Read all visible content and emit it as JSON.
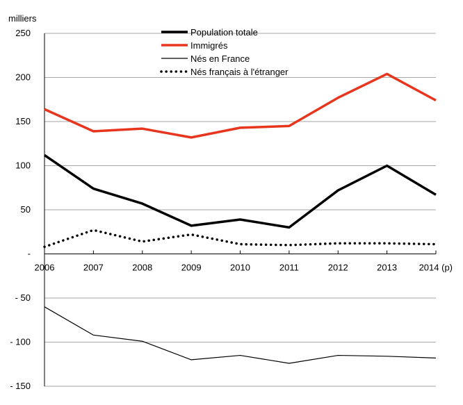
{
  "chart_data": {
    "type": "line",
    "title": "",
    "unit_label": "milliers",
    "xlabel": "",
    "ylabel": "milliers",
    "categories": [
      "2006",
      "2007",
      "2008",
      "2009",
      "2010",
      "2011",
      "2012",
      "2013",
      "2014 (p)"
    ],
    "ylim": [
      -150,
      250
    ],
    "yticks": [
      250,
      200,
      150,
      100,
      50,
      0,
      -50,
      -100,
      -150
    ],
    "ytick_labels": [
      "250",
      "200",
      "150",
      "100",
      "50",
      "-",
      "- 50",
      "- 100",
      "- 150"
    ],
    "grid": true,
    "legend_position": "top-center",
    "series": [
      {
        "name": "Population totale",
        "color": "#000000",
        "style": "solid-thick",
        "values": [
          112,
          74,
          57,
          32,
          39,
          30,
          72,
          100,
          67
        ]
      },
      {
        "name": "Immigrés",
        "color": "#e8351e",
        "style": "solid-thick",
        "values": [
          164,
          139,
          142,
          132,
          143,
          145,
          177,
          204,
          174
        ]
      },
      {
        "name": "Nés en France",
        "color": "#000000",
        "style": "solid-thin",
        "values": [
          -60,
          -92,
          -99,
          -120,
          -115,
          -124,
          -115,
          -116,
          -118
        ]
      },
      {
        "name": "Nés français à l'étranger",
        "color": "#000000",
        "style": "dotted",
        "values": [
          8,
          27,
          14,
          22,
          11,
          10,
          12,
          12,
          11
        ]
      }
    ]
  }
}
